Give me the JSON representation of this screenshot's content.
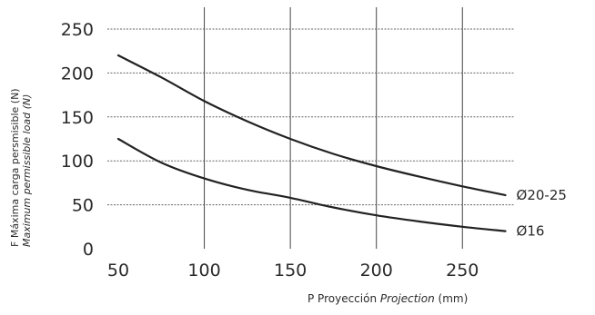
{
  "chart_data": {
    "type": "line",
    "x_ticks": [
      50,
      100,
      150,
      200,
      250
    ],
    "y_ticks": [
      0,
      50,
      100,
      150,
      200,
      250
    ],
    "xlim": [
      50,
      280
    ],
    "ylim": [
      0,
      250
    ],
    "ylabel_es": "F  Máxima carga persmisible (N)",
    "ylabel_en": "Maximum permissible load (N)",
    "xlabel_prefix": "P  Proyección",
    "xlabel_en": "Projection",
    "xlabel_unit": "(mm)",
    "grid": true,
    "series": [
      {
        "name": "Ø20-25",
        "x": [
          50,
          75,
          100,
          125,
          150,
          175,
          200,
          225,
          250,
          275
        ],
        "y": [
          220,
          195,
          168,
          145,
          125,
          108,
          94,
          82,
          71,
          61
        ]
      },
      {
        "name": "Ø16",
        "x": [
          50,
          75,
          100,
          125,
          150,
          175,
          200,
          225,
          250,
          275
        ],
        "y": [
          125,
          98,
          80,
          67,
          58,
          47,
          38,
          31,
          25,
          20
        ]
      }
    ]
  }
}
